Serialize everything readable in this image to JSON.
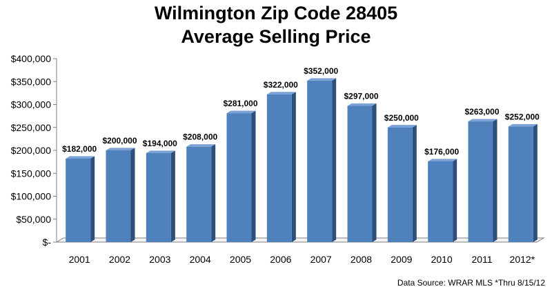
{
  "title_line1": "Wilmington Zip Code 28405",
  "title_line2": "Average Selling Price",
  "footnote": "Data Source: WRAR MLS  *Thru 8/15/12",
  "colors": {
    "bar_front": "#4f81bd",
    "bar_side": "#2c4f7c",
    "bar_top": "#7da2d6",
    "axis": "#7f7f7f"
  },
  "chart_data": {
    "type": "bar",
    "categories": [
      "2001",
      "2002",
      "2003",
      "2004",
      "2005",
      "2006",
      "2007",
      "2008",
      "2009",
      "2010",
      "2011",
      "2012*"
    ],
    "values": [
      182000,
      200000,
      194000,
      208000,
      281000,
      322000,
      352000,
      297000,
      250000,
      176000,
      263000,
      252000
    ],
    "data_labels": [
      "$182,000",
      "$200,000",
      "$194,000",
      "$208,000",
      "$281,000",
      "$322,000",
      "$352,000",
      "$297,000",
      "$250,000",
      "$176,000",
      "$263,000",
      "$252,000"
    ],
    "y_ticks": [
      0,
      50000,
      100000,
      150000,
      200000,
      250000,
      300000,
      350000,
      400000
    ],
    "y_tick_labels": [
      "$-",
      "$50,000",
      "$100,000",
      "$150,000",
      "$200,000",
      "$250,000",
      "$300,000",
      "$350,000",
      "$400,000"
    ],
    "ylim": [
      0,
      400000
    ],
    "grid": false,
    "legend": "none",
    "style": "3d-column"
  }
}
